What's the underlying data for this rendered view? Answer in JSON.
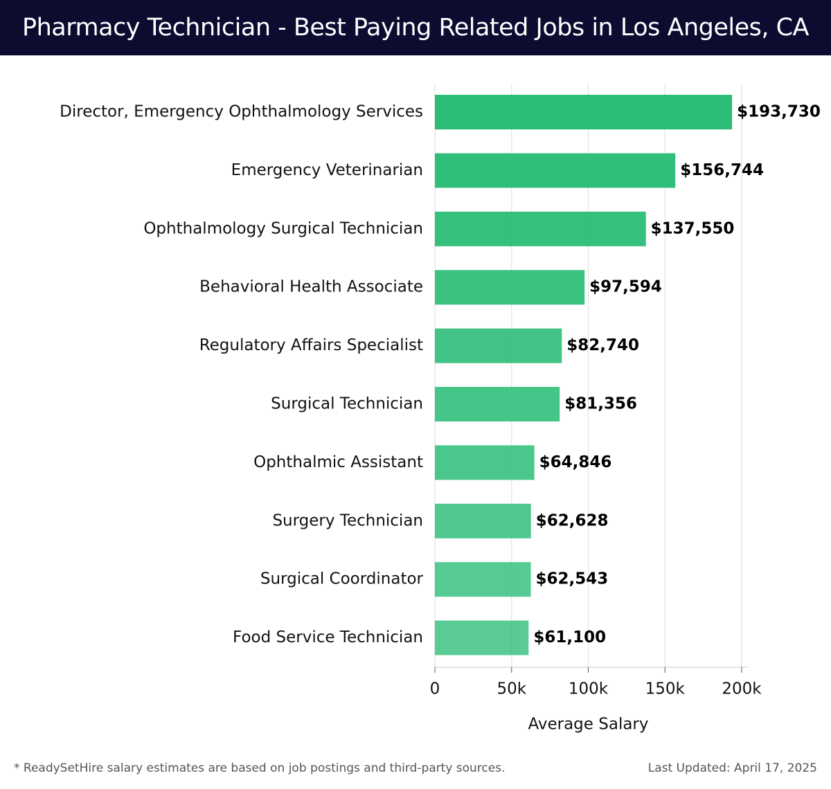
{
  "title": "Pharmacy Technician - Best Paying Related Jobs in Los Angeles, CA",
  "footer": {
    "note": "* ReadySetHire salary estimates are based on job postings and third-party sources.",
    "updated": "Last Updated: April 17, 2025"
  },
  "colors": {
    "header_bg": "#0b0c30",
    "bar": "#2bbd77",
    "grid": "#dddddd"
  },
  "chart_data": {
    "type": "bar",
    "orientation": "horizontal",
    "title": "Pharmacy Technician - Best Paying Related Jobs in Los Angeles, CA",
    "xlabel": "Average Salary",
    "ylabel": "",
    "xlim": [
      0,
      200000
    ],
    "grid": true,
    "categories": [
      "Director, Emergency Ophthalmology Services",
      "Emergency Veterinarian",
      "Ophthalmology Surgical Technician",
      "Behavioral Health Associate",
      "Regulatory Affairs Specialist",
      "Surgical Technician",
      "Ophthalmic Assistant",
      "Surgery Technician",
      "Surgical Coordinator",
      "Food Service Technician"
    ],
    "values": [
      193730,
      156744,
      137550,
      97594,
      82740,
      81356,
      64846,
      62628,
      62543,
      61100
    ],
    "value_labels": [
      "$193,730",
      "$156,744",
      "$137,550",
      "$97,594",
      "$82,740",
      "$81,356",
      "$64,846",
      "$62,628",
      "$62,543",
      "$61,100"
    ],
    "ticks": [
      0,
      50000,
      100000,
      150000,
      200000
    ],
    "tick_labels": [
      "0",
      "50k",
      "100k",
      "150k",
      "200k"
    ]
  }
}
